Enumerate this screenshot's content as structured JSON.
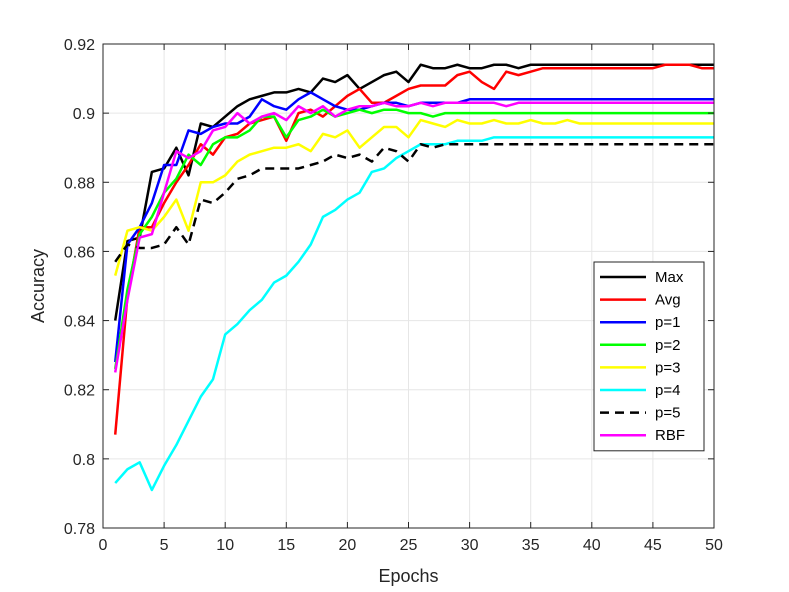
{
  "chart_data": {
    "type": "line",
    "xlabel": "Epochs",
    "ylabel": "Accuracy",
    "xlim": [
      0,
      50
    ],
    "ylim": [
      0.78,
      0.92
    ],
    "xticks": [
      0,
      5,
      10,
      15,
      20,
      25,
      30,
      35,
      40,
      45,
      50
    ],
    "yticks": [
      0.78,
      0.8,
      0.82,
      0.84,
      0.86,
      0.88,
      0.9,
      0.92
    ],
    "ytick_labels": [
      "0.78",
      "0.8",
      "0.82",
      "0.84",
      "0.86",
      "0.88",
      "0.9",
      "0.92"
    ],
    "grid": true,
    "legend_position": "right",
    "x": [
      1,
      2,
      3,
      4,
      5,
      6,
      7,
      8,
      9,
      10,
      11,
      12,
      13,
      14,
      15,
      16,
      17,
      18,
      19,
      20,
      21,
      22,
      23,
      24,
      25,
      26,
      27,
      28,
      29,
      30,
      31,
      32,
      33,
      34,
      35,
      36,
      37,
      38,
      39,
      40,
      41,
      42,
      43,
      44,
      45,
      46,
      47,
      48,
      49,
      50
    ],
    "series": [
      {
        "name": "Max",
        "color": "#000000",
        "dash": false,
        "values": [
          0.84,
          0.863,
          0.864,
          0.883,
          0.884,
          0.89,
          0.882,
          0.897,
          0.896,
          0.899,
          0.902,
          0.904,
          0.905,
          0.906,
          0.906,
          0.907,
          0.906,
          0.91,
          0.909,
          0.911,
          0.907,
          0.909,
          0.911,
          0.912,
          0.909,
          0.914,
          0.913,
          0.913,
          0.914,
          0.913,
          0.913,
          0.914,
          0.914,
          0.913,
          0.914,
          0.914,
          0.914,
          0.914,
          0.914,
          0.914,
          0.914,
          0.914,
          0.914,
          0.914,
          0.914,
          0.914,
          0.914,
          0.914,
          0.914,
          0.914
        ]
      },
      {
        "name": "Avg",
        "color": "#ff0000",
        "dash": false,
        "values": [
          0.807,
          0.847,
          0.867,
          0.867,
          0.874,
          0.88,
          0.885,
          0.891,
          0.888,
          0.893,
          0.894,
          0.897,
          0.898,
          0.899,
          0.892,
          0.9,
          0.901,
          0.899,
          0.902,
          0.905,
          0.907,
          0.903,
          0.903,
          0.905,
          0.907,
          0.908,
          0.908,
          0.908,
          0.911,
          0.912,
          0.909,
          0.907,
          0.912,
          0.911,
          0.912,
          0.913,
          0.913,
          0.913,
          0.913,
          0.913,
          0.913,
          0.913,
          0.913,
          0.913,
          0.913,
          0.914,
          0.914,
          0.914,
          0.913,
          0.913
        ]
      },
      {
        "name": "p=1",
        "color": "#0000ff",
        "dash": false,
        "values": [
          0.828,
          0.862,
          0.867,
          0.874,
          0.885,
          0.885,
          0.895,
          0.894,
          0.896,
          0.897,
          0.897,
          0.899,
          0.904,
          0.902,
          0.901,
          0.904,
          0.906,
          0.904,
          0.902,
          0.901,
          0.901,
          0.902,
          0.903,
          0.903,
          0.902,
          0.903,
          0.903,
          0.903,
          0.903,
          0.904,
          0.904,
          0.904,
          0.904,
          0.904,
          0.904,
          0.904,
          0.904,
          0.904,
          0.904,
          0.904,
          0.904,
          0.904,
          0.904,
          0.904,
          0.904,
          0.904,
          0.904,
          0.904,
          0.904,
          0.904
        ]
      },
      {
        "name": "p=2",
        "color": "#00ff00",
        "dash": false,
        "values": [
          0.826,
          0.849,
          0.865,
          0.87,
          0.877,
          0.881,
          0.888,
          0.885,
          0.891,
          0.893,
          0.893,
          0.895,
          0.899,
          0.899,
          0.893,
          0.898,
          0.899,
          0.901,
          0.899,
          0.9,
          0.901,
          0.9,
          0.901,
          0.901,
          0.9,
          0.9,
          0.899,
          0.9,
          0.9,
          0.9,
          0.9,
          0.9,
          0.9,
          0.9,
          0.9,
          0.9,
          0.9,
          0.9,
          0.9,
          0.9,
          0.9,
          0.9,
          0.9,
          0.9,
          0.9,
          0.9,
          0.9,
          0.9,
          0.9,
          0.9
        ]
      },
      {
        "name": "p=3",
        "color": "#ffff00",
        "dash": false,
        "values": [
          0.853,
          0.866,
          0.867,
          0.866,
          0.87,
          0.875,
          0.866,
          0.88,
          0.88,
          0.882,
          0.886,
          0.888,
          0.889,
          0.89,
          0.89,
          0.891,
          0.889,
          0.894,
          0.893,
          0.895,
          0.89,
          0.893,
          0.896,
          0.896,
          0.893,
          0.898,
          0.897,
          0.896,
          0.898,
          0.897,
          0.897,
          0.898,
          0.897,
          0.897,
          0.898,
          0.897,
          0.897,
          0.898,
          0.897,
          0.897,
          0.897,
          0.897,
          0.897,
          0.897,
          0.897,
          0.897,
          0.897,
          0.897,
          0.897,
          0.897
        ]
      },
      {
        "name": "p=4",
        "color": "#00ffff",
        "dash": false,
        "values": [
          0.793,
          0.797,
          0.799,
          0.791,
          0.798,
          0.804,
          0.811,
          0.818,
          0.823,
          0.836,
          0.839,
          0.843,
          0.846,
          0.851,
          0.853,
          0.857,
          0.862,
          0.87,
          0.872,
          0.875,
          0.877,
          0.883,
          0.884,
          0.887,
          0.889,
          0.891,
          0.891,
          0.891,
          0.892,
          0.892,
          0.892,
          0.893,
          0.893,
          0.893,
          0.893,
          0.893,
          0.893,
          0.893,
          0.893,
          0.893,
          0.893,
          0.893,
          0.893,
          0.893,
          0.893,
          0.893,
          0.893,
          0.893,
          0.893,
          0.893
        ]
      },
      {
        "name": "p=5",
        "color": "#000000",
        "dash": true,
        "values": [
          0.857,
          0.862,
          0.861,
          0.861,
          0.862,
          0.867,
          0.862,
          0.875,
          0.874,
          0.877,
          0.881,
          0.882,
          0.884,
          0.884,
          0.884,
          0.884,
          0.885,
          0.886,
          0.888,
          0.887,
          0.888,
          0.886,
          0.89,
          0.889,
          0.886,
          0.891,
          0.89,
          0.891,
          0.891,
          0.891,
          0.891,
          0.891,
          0.891,
          0.891,
          0.891,
          0.891,
          0.891,
          0.891,
          0.891,
          0.891,
          0.891,
          0.891,
          0.891,
          0.891,
          0.891,
          0.891,
          0.891,
          0.891,
          0.891,
          0.891
        ]
      },
      {
        "name": "RBF",
        "color": "#ff00ff",
        "dash": false,
        "values": [
          0.825,
          0.846,
          0.864,
          0.865,
          0.877,
          0.889,
          0.887,
          0.889,
          0.895,
          0.896,
          0.9,
          0.897,
          0.899,
          0.9,
          0.898,
          0.902,
          0.9,
          0.902,
          0.899,
          0.901,
          0.902,
          0.902,
          0.903,
          0.902,
          0.902,
          0.903,
          0.902,
          0.903,
          0.903,
          0.903,
          0.903,
          0.903,
          0.902,
          0.903,
          0.903,
          0.903,
          0.903,
          0.903,
          0.903,
          0.903,
          0.903,
          0.903,
          0.903,
          0.903,
          0.903,
          0.903,
          0.903,
          0.903,
          0.903,
          0.903
        ]
      }
    ]
  }
}
